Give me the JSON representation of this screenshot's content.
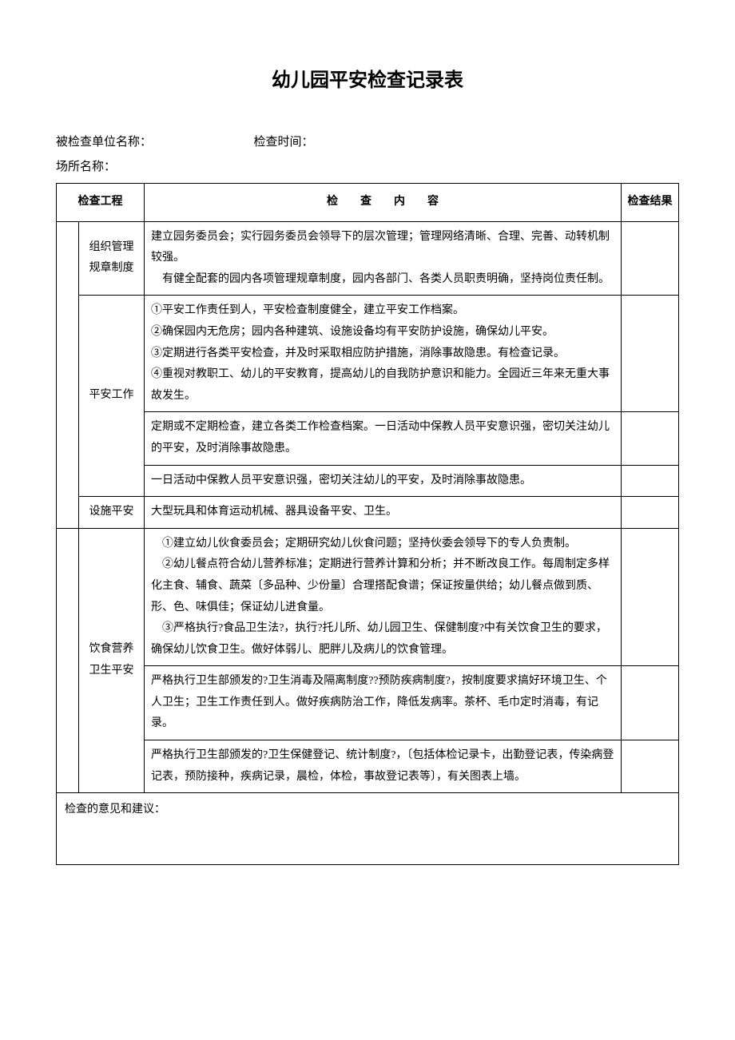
{
  "title": "幼儿园平安检查记录表",
  "meta": {
    "unit_label": "被检查单位名称：",
    "time_label": "检查时间：",
    "place_label": "场所名称："
  },
  "headers": {
    "project": "检查工程",
    "content": "检　　查　　内　　容",
    "result": "检查结果"
  },
  "rows": [
    {
      "category": "组织管理规章制度",
      "content": "建立园务委员会；实行园务委员会领导下的层次管理；管理网络清晰、合理、完善、动转机制较强。\n　有健全配套的园内各项管理规章制度，园内各部门、各类人员职责明确，坚持岗位责任制。"
    },
    {
      "category": "平安工作",
      "items": [
        "①平安工作责任到人，平安检查制度健全，建立平安工作档案。\n②确保园内无危房；园内各种建筑、设施设备均有平安防护设施，确保幼儿平安。\n③定期进行各类平安检查，并及时采取相应防护措施，消除事故隐患。有检查记录。\n④重视对教职工、幼儿的平安教育，提高幼儿的自我防护意识和能力。全园近三年来无重大事故发生。",
        "定期或不定期检查，建立各类工作检查档案。一日活动中保教人员平安意识强，密切关注幼儿的平安，及时消除事故隐患。",
        "一日活动中保教人员平安意识强，密切关注幼儿的平安，及时消除事故隐患。"
      ]
    },
    {
      "category": "设施平安",
      "content": "大型玩具和体育运动机械、器具设备平安、卫生。"
    },
    {
      "category": "饮食营养卫生平安",
      "items": [
        "　①建立幼儿伙食委员会；定期研究幼儿伙食问题；坚持伙委会领导下的专人负责制。\n　②幼儿餐点符合幼儿营养标准；定期进行营养计算和分析；并不断改良工作。每周制定多样化主食、辅食、蔬菜〔多品种、少份量〕合理搭配食谱；保证按量供给；幼儿餐点做到质、形、色、味俱佳；保证幼儿进食量。\n　③严格执行?食品卫生法?，执行?托儿所、幼儿园卫生、保健制度?中有关饮食卫生的要求，确保幼儿饮食卫生。做好体弱儿、肥胖儿及病儿的饮食管理。",
        "严格执行卫生部颁发的?卫生消毒及隔离制度??预防疾病制度?，按制度要求搞好环境卫生、个人卫生；卫生工作责任到人。做好疾病防治工作，降低发病率。茶杯、毛巾定时消毒，有记录。",
        "严格执行卫生部颁发的?卫生保健登记、统计制度?，〔包括体检记录卡，出勤登记表，传染病登记表，预防接种，疾病记录，晨检，体检，事故登记表等〕，有关图表上墙。"
      ]
    }
  ],
  "footer": "检查的意见和建议："
}
